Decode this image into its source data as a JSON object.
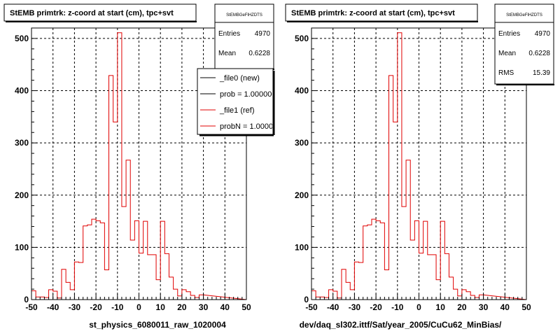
{
  "chart_data": [
    {
      "type": "bar",
      "title": "StEMB primtrk: z-coord at start (cm), tpc+svt",
      "xlabel": "st_physics_6080011_raw_1020004",
      "xlim": [
        -50,
        50
      ],
      "ylim": [
        0,
        520
      ],
      "bin_width": 2,
      "xticks": [
        -50,
        -40,
        -30,
        -20,
        -10,
        0,
        10,
        20,
        30,
        40,
        50
      ],
      "yticks": [
        0,
        100,
        200,
        300,
        400,
        500
      ],
      "grid": true,
      "series": [
        {
          "name": "_file1 (ref)",
          "color": "#e00000",
          "values": [
            17,
            5,
            5,
            4,
            19,
            16,
            3,
            58,
            33,
            19,
            72,
            71,
            141,
            143,
            154,
            151,
            147,
            57,
            429,
            340,
            511,
            178,
            267,
            114,
            151,
            89,
            150,
            86,
            86,
            38,
            150,
            88,
            43,
            20,
            7,
            19,
            15,
            8,
            4,
            9
          ]
        }
      ],
      "stats": {
        "name": "StEMBGeFlHZDTS",
        "rows": [
          {
            "label": "Entries",
            "value": "4970"
          },
          {
            "label": "Mean",
            "value": "0.6228"
          }
        ]
      },
      "legend": [
        {
          "label": "_file0 (new)",
          "color": "#000000"
        },
        {
          "label": "prob = 1.000000",
          "color": "#000000"
        },
        {
          "label": "_file1 (ref)",
          "color": "#e00000"
        },
        {
          "label": "probN = 1.000000",
          "color": "#e00000"
        }
      ]
    },
    {
      "type": "bar",
      "title": "StEMB primtrk: z-coord at start (cm), tpc+svt",
      "xlabel": "dev/daq_sl302.ittf/Sat/year_2005/CuCu62_MinBias/",
      "xlim": [
        -50,
        50
      ],
      "ylim": [
        0,
        520
      ],
      "bin_width": 2,
      "xticks": [
        -50,
        -40,
        -30,
        -20,
        -10,
        0,
        10,
        20,
        30,
        40,
        50
      ],
      "yticks": [
        0,
        100,
        200,
        300,
        400,
        500
      ],
      "grid": true,
      "series": [
        {
          "name": "",
          "color": "#e00000",
          "values": [
            17,
            5,
            5,
            4,
            19,
            16,
            3,
            58,
            33,
            19,
            72,
            71,
            141,
            143,
            154,
            151,
            147,
            57,
            429,
            340,
            511,
            178,
            267,
            114,
            151,
            89,
            150,
            86,
            86,
            38,
            150,
            88,
            43,
            20,
            7,
            19,
            15,
            8,
            4,
            9
          ]
        }
      ],
      "stats": {
        "name": "StEMBGeFlHZDTS",
        "rows": [
          {
            "label": "Entries",
            "value": "4970"
          },
          {
            "label": "Mean",
            "value": "0.6228"
          },
          {
            "label": "RMS",
            "value": "15.39"
          }
        ]
      }
    }
  ]
}
